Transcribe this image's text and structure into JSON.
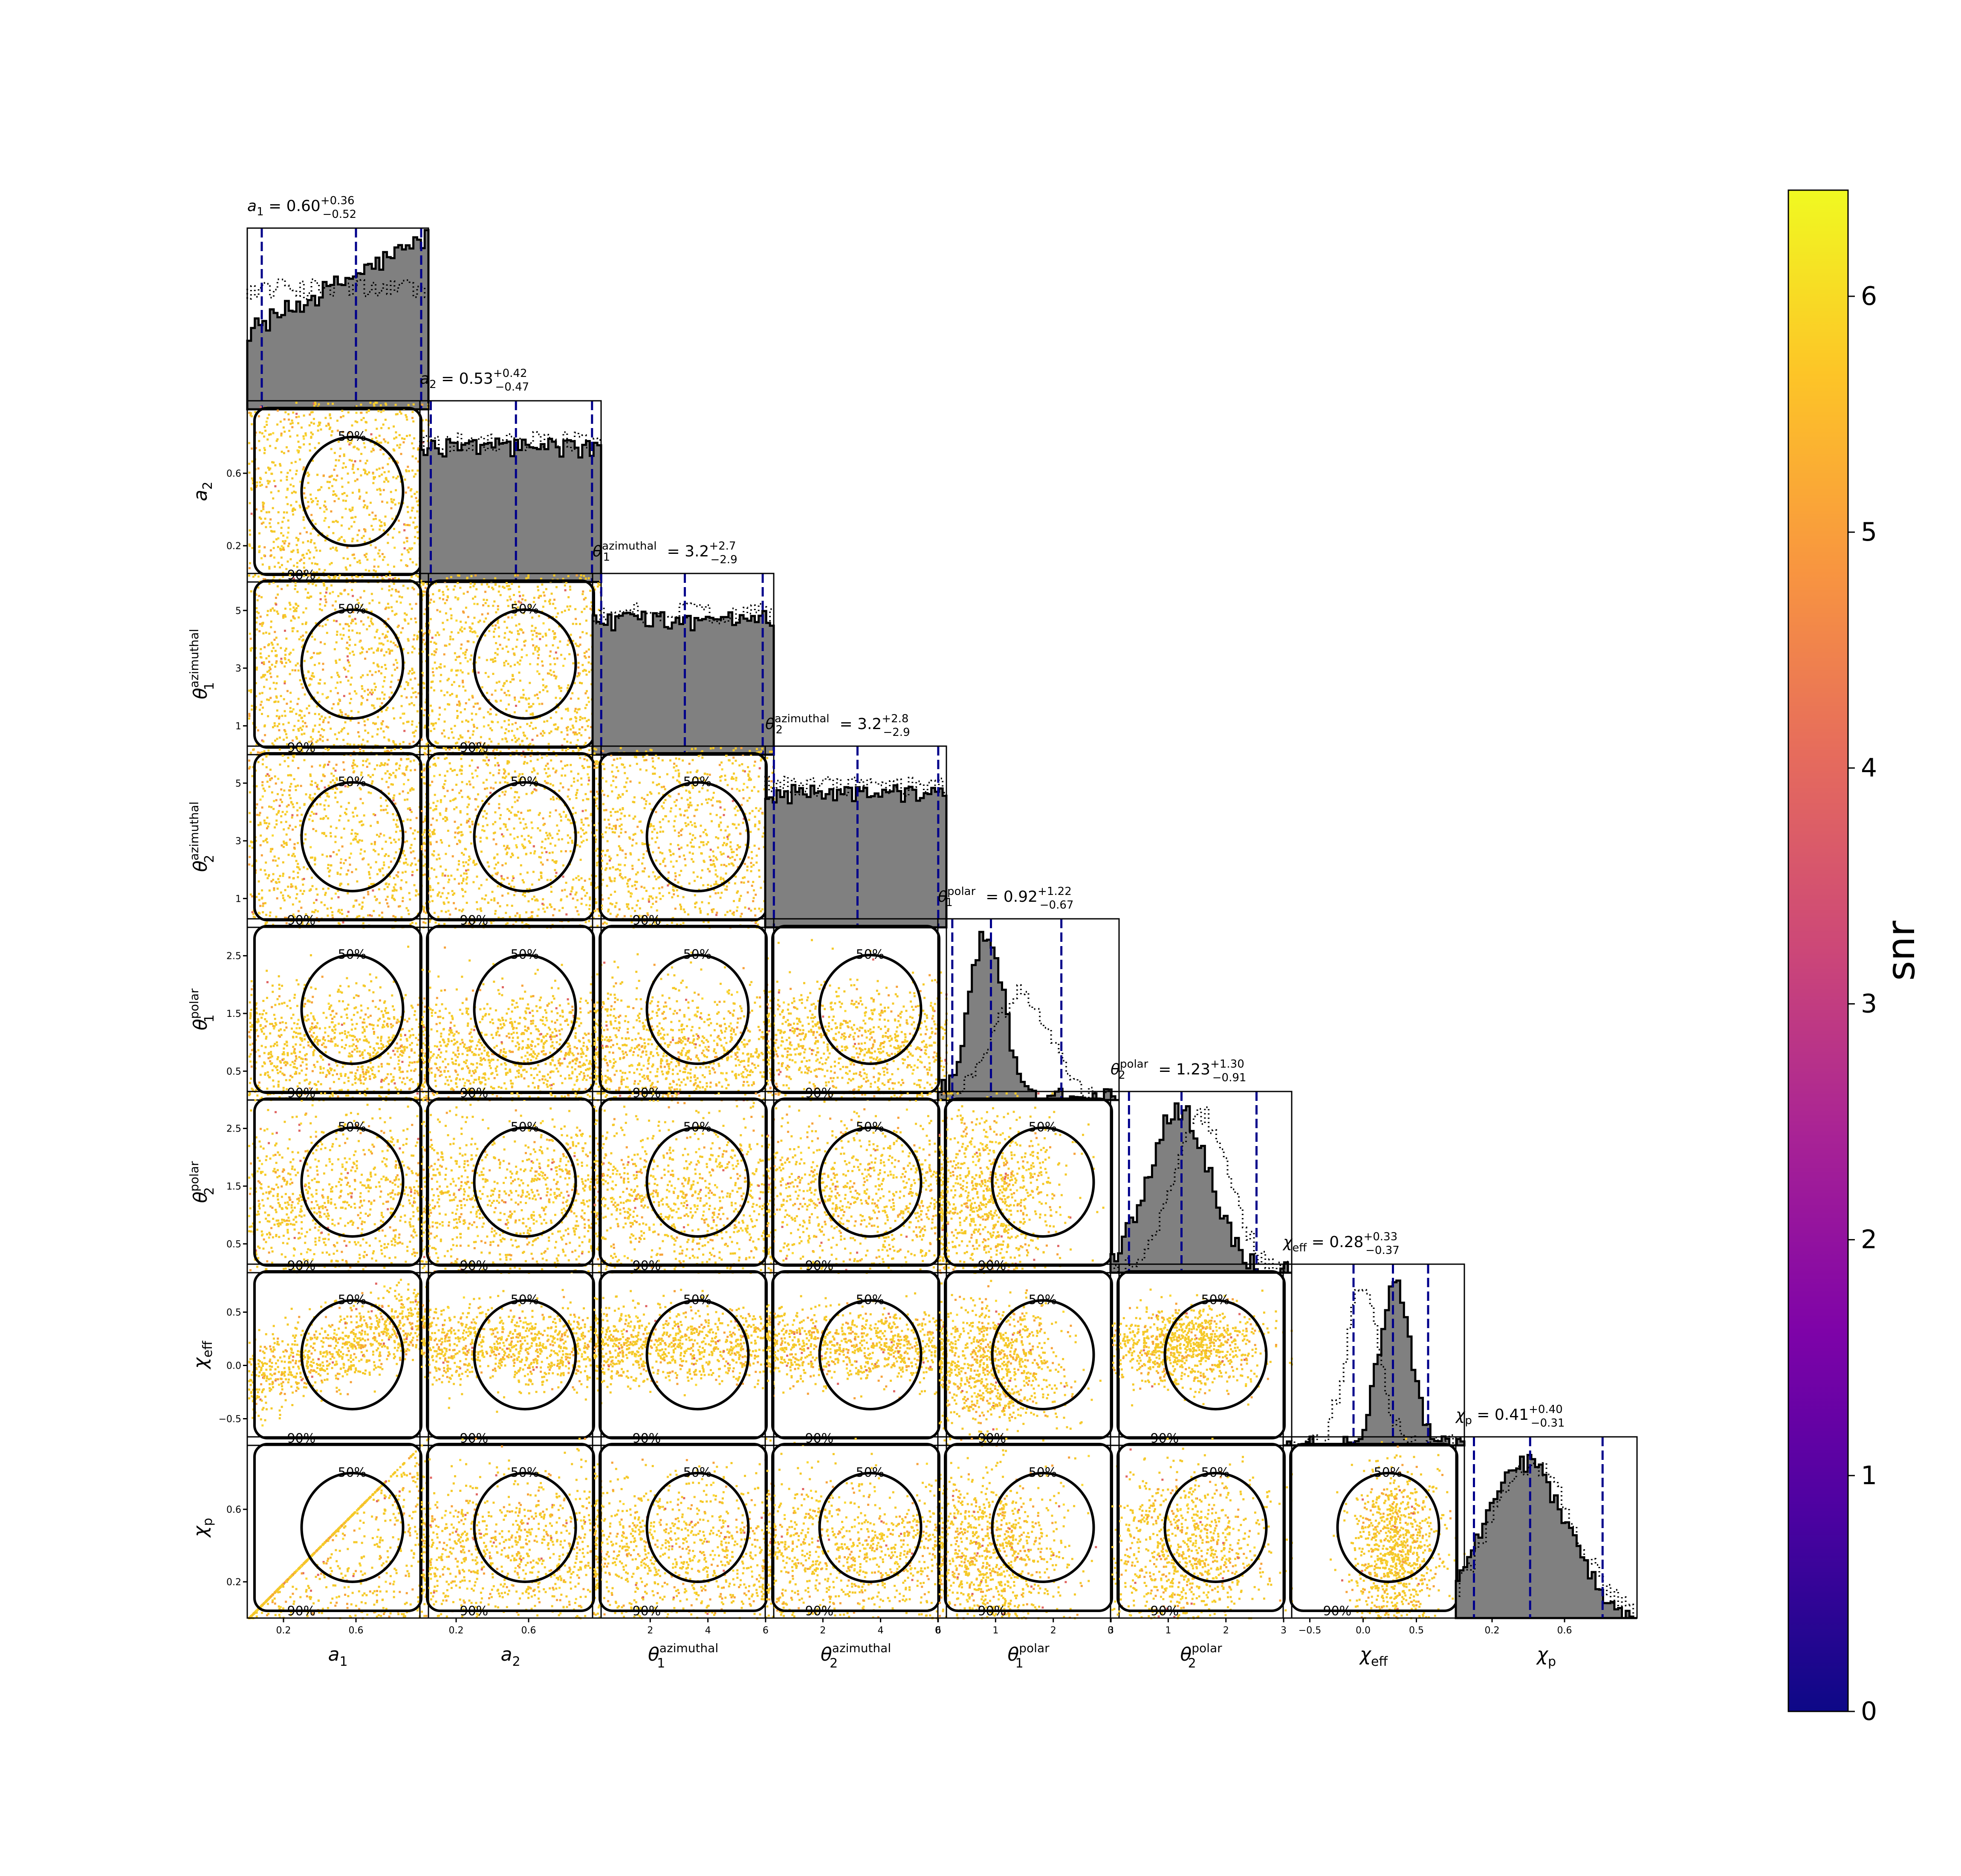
{
  "chart_data": {
    "type": "scatter",
    "subtype": "corner_plot",
    "parameters": [
      {
        "key": "a1",
        "label": "a",
        "sub": "1",
        "sup": "",
        "range": [
          0,
          1
        ],
        "ticks": [
          0.2,
          0.6
        ],
        "tick_labels": [
          "0.2",
          "0.6"
        ],
        "title": "a₁ = 0.60",
        "plus": "+0.36",
        "minus": "−0.52",
        "median": 0.6,
        "lo": 0.08,
        "hi": 0.96,
        "shape": "rising"
      },
      {
        "key": "a2",
        "label": "a",
        "sub": "2",
        "sup": "",
        "range": [
          0,
          1
        ],
        "ticks": [
          0.2,
          0.6
        ],
        "tick_labels": [
          "0.2",
          "0.6"
        ],
        "title": "a₂ = 0.53",
        "plus": "+0.42",
        "minus": "−0.47",
        "median": 0.53,
        "lo": 0.06,
        "hi": 0.95,
        "shape": "flat"
      },
      {
        "key": "theta1_az",
        "label": "θ",
        "sub": "1",
        "sup": "azimuthal",
        "range": [
          0,
          6.283
        ],
        "ticks": [
          1,
          3,
          5
        ],
        "tick_labels": [
          "1",
          "3",
          "5"
        ],
        "xticks": [
          2,
          4,
          6
        ],
        "xtick_labels": [
          "2",
          "4",
          "6"
        ],
        "title": "θ₁ᵃᶻⁱᵐᵘᵗʰᵃˡ = 3.2",
        "plus": "+2.7",
        "minus": "−2.9",
        "median": 3.2,
        "lo": 0.3,
        "hi": 5.9,
        "shape": "flat"
      },
      {
        "key": "theta2_az",
        "label": "θ",
        "sub": "2",
        "sup": "azimuthal",
        "range": [
          0,
          6.283
        ],
        "ticks": [
          1,
          3,
          5
        ],
        "tick_labels": [
          "1",
          "3",
          "5"
        ],
        "xticks": [
          2,
          4,
          6
        ],
        "xtick_labels": [
          "2",
          "4",
          "6"
        ],
        "title": "θ₂ᵃᶻⁱᵐᵘᵗʰᵃˡ = 3.2",
        "plus": "+2.8",
        "minus": "−2.9",
        "median": 3.2,
        "lo": 0.3,
        "hi": 6.0,
        "shape": "flat"
      },
      {
        "key": "theta1_pol",
        "label": "θ",
        "sub": "1",
        "sup": "polar",
        "range": [
          0,
          3.14
        ],
        "ticks": [
          0.5,
          1.5,
          2.5
        ],
        "tick_labels": [
          "0.5",
          "1.5",
          "2.5"
        ],
        "xticks": [
          0,
          1,
          2,
          3
        ],
        "xtick_labels": [
          "0",
          "1",
          "2",
          "3"
        ],
        "title": "θ₁ᵖᵒˡᵃʳ = 0.92",
        "plus": "+1.22",
        "minus": "−0.67",
        "median": 0.92,
        "lo": 0.25,
        "hi": 2.14,
        "shape": "peak_low"
      },
      {
        "key": "theta2_pol",
        "label": "θ",
        "sub": "2",
        "sup": "polar",
        "range": [
          0,
          3.14
        ],
        "ticks": [
          0.5,
          1.5,
          2.5
        ],
        "tick_labels": [
          "0.5",
          "1.5",
          "2.5"
        ],
        "xticks": [
          0,
          1,
          2,
          3
        ],
        "xtick_labels": [
          "0",
          "1",
          "2",
          "3"
        ],
        "title": "θ₂ᵖᵒˡᵃʳ = 1.23",
        "plus": "+1.30",
        "minus": "−0.91",
        "median": 1.23,
        "lo": 0.32,
        "hi": 2.53,
        "shape": "peak_mid"
      },
      {
        "key": "chi_eff",
        "label": "χ",
        "sub": "eff",
        "sup": "",
        "range": [
          -0.75,
          0.95
        ],
        "ticks": [
          -0.5,
          0.0,
          0.5
        ],
        "tick_labels": [
          "−0.5",
          "0.0",
          "0.5"
        ],
        "xticks": [
          -0.5,
          0.0,
          0.5
        ],
        "xtick_labels": [
          "−0.5",
          "0.0",
          "0.5"
        ],
        "title": "χ_eff = 0.28",
        "plus": "+0.33",
        "minus": "−0.37",
        "median": 0.28,
        "lo": -0.09,
        "hi": 0.61,
        "shape": "peak_high"
      },
      {
        "key": "chi_p",
        "label": "χ",
        "sub": "p",
        "sup": "",
        "range": [
          0,
          1
        ],
        "ticks": [
          0.2,
          0.6
        ],
        "tick_labels": [
          "0.2",
          "0.6"
        ],
        "title": "χ_p = 0.41",
        "plus": "+0.40",
        "minus": "−0.31",
        "median": 0.41,
        "lo": 0.1,
        "hi": 0.81,
        "shape": "hump"
      }
    ],
    "title_texts": [
      {
        "lhs": "a",
        "sub": "1",
        "sup": "",
        "value": "= 0.60",
        "plus": "+0.36",
        "minus": "−0.52"
      },
      {
        "lhs": "a",
        "sub": "2",
        "sup": "",
        "value": "= 0.53",
        "plus": "+0.42",
        "minus": "−0.47"
      },
      {
        "lhs": "θ",
        "sub": "1",
        "sup": "azimuthal",
        "value": "= 3.2",
        "plus": "+2.7",
        "minus": "−2.9"
      },
      {
        "lhs": "θ",
        "sub": "2",
        "sup": "azimuthal",
        "value": "= 3.2",
        "plus": "+2.8",
        "minus": "−2.9"
      },
      {
        "lhs": "θ",
        "sub": "1",
        "sup": "polar",
        "value": "= 0.92",
        "plus": "+1.22",
        "minus": "−0.67"
      },
      {
        "lhs": "θ",
        "sub": "2",
        "sup": "polar",
        "value": "= 1.23",
        "plus": "+1.30",
        "minus": "−0.91"
      },
      {
        "lhs": "χ",
        "sub": "eff",
        "sup": "",
        "value": "= 0.28",
        "plus": "+0.33",
        "minus": "−0.37"
      },
      {
        "lhs": "χ",
        "sub": "p",
        "sup": "",
        "value": "= 0.41",
        "plus": "+0.40",
        "minus": "−0.31"
      }
    ],
    "contour_levels": [
      "50%",
      "90%"
    ],
    "colorbar": {
      "label": "snr",
      "min": 0,
      "max": 6.45,
      "ticks": [
        0,
        1,
        2,
        3,
        4,
        5,
        6
      ],
      "tick_labels": [
        "0",
        "1",
        "2",
        "3",
        "4",
        "5",
        "6"
      ],
      "colormap": "plasma"
    },
    "colors": {
      "hist_fill": "#808080",
      "quantile_line": "#00008b",
      "contour": "#000000",
      "dominant_point": "#f5c928"
    }
  }
}
